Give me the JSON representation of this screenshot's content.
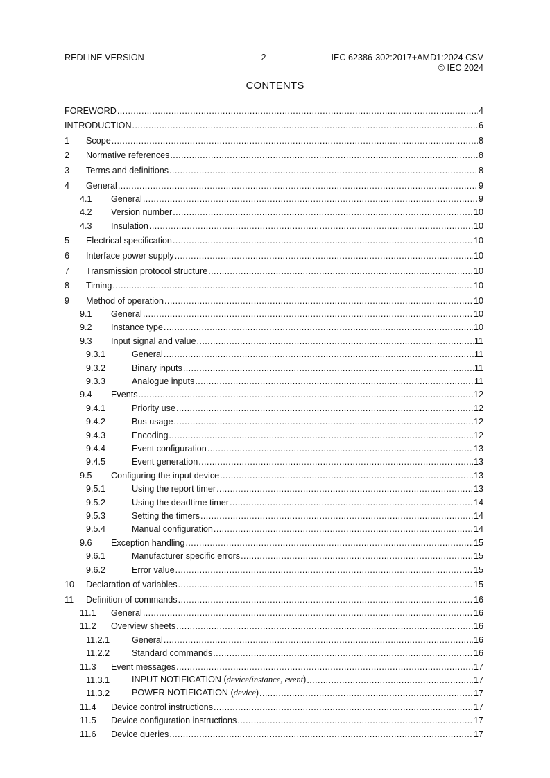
{
  "header": {
    "left": "REDLINE VERSION",
    "center": "– 2 –",
    "right_line1": "IEC 62386-302:2017+AMD1:2024 CSV",
    "right_line2": "© IEC 2024"
  },
  "title": "CONTENTS",
  "toc": [
    {
      "level": 0,
      "num": "",
      "title": "FOREWORD",
      "page": "4"
    },
    {
      "level": 0,
      "num": "",
      "title": "INTRODUCTION",
      "page": "6"
    },
    {
      "level": 1,
      "num": "1",
      "title": "Scope",
      "page": "8"
    },
    {
      "level": 1,
      "num": "2",
      "title": "Normative references",
      "page": "8"
    },
    {
      "level": 1,
      "num": "3",
      "title": "Terms and definitions",
      "page": "8"
    },
    {
      "level": 1,
      "num": "4",
      "title": "General",
      "page": "9"
    },
    {
      "level": 2,
      "num": "4.1",
      "title": "General",
      "page": "9"
    },
    {
      "level": 2,
      "num": "4.2",
      "title": "Version number",
      "page": "10"
    },
    {
      "level": 2,
      "num": "4.3",
      "title": "Insulation",
      "page": "10"
    },
    {
      "level": 1,
      "num": "5",
      "title": "Electrical specification",
      "page": "10"
    },
    {
      "level": 1,
      "num": "6",
      "title": "Interface power supply",
      "page": "10"
    },
    {
      "level": 1,
      "num": "7",
      "title": "Transmission protocol structure",
      "page": "10"
    },
    {
      "level": 1,
      "num": "8",
      "title": "Timing",
      "page": "10"
    },
    {
      "level": 1,
      "num": "9",
      "title": "Method of operation",
      "page": "10"
    },
    {
      "level": 2,
      "num": "9.1",
      "title": "General",
      "page": "10"
    },
    {
      "level": 2,
      "num": "9.2",
      "title": "Instance type",
      "page": "10"
    },
    {
      "level": 2,
      "num": "9.3",
      "title": "Input signal and value",
      "page": "11"
    },
    {
      "level": 3,
      "num": "9.3.1",
      "title": "General",
      "page": "11"
    },
    {
      "level": 3,
      "num": "9.3.2",
      "title": "Binary inputs",
      "page": "11"
    },
    {
      "level": 3,
      "num": "9.3.3",
      "title": "Analogue inputs",
      "page": "11"
    },
    {
      "level": 2,
      "num": "9.4",
      "title": "Events",
      "page": "12"
    },
    {
      "level": 3,
      "num": "9.4.1",
      "title": "Priority use",
      "page": "12"
    },
    {
      "level": 3,
      "num": "9.4.2",
      "title": "Bus usage",
      "page": "12"
    },
    {
      "level": 3,
      "num": "9.4.3",
      "title": "Encoding",
      "page": "12"
    },
    {
      "level": 3,
      "num": "9.4.4",
      "title": "Event configuration",
      "page": "13"
    },
    {
      "level": 3,
      "num": "9.4.5",
      "title": "Event generation",
      "page": "13"
    },
    {
      "level": 2,
      "num": "9.5",
      "title": "Configuring the input device",
      "page": "13"
    },
    {
      "level": 3,
      "num": "9.5.1",
      "title": "Using the report timer",
      "page": "13"
    },
    {
      "level": 3,
      "num": "9.5.2",
      "title": "Using the deadtime timer",
      "page": "14"
    },
    {
      "level": 3,
      "num": "9.5.3",
      "title": "Setting the timers",
      "page": "14"
    },
    {
      "level": 3,
      "num": "9.5.4",
      "title": "Manual configuration",
      "page": "14"
    },
    {
      "level": 2,
      "num": "9.6",
      "title": "Exception handling",
      "page": "15"
    },
    {
      "level": 3,
      "num": "9.6.1",
      "title": "Manufacturer specific errors",
      "page": "15"
    },
    {
      "level": 3,
      "num": "9.6.2",
      "title": "Error value",
      "page": "15"
    },
    {
      "level": 1,
      "num": "10",
      "title": "Declaration of variables",
      "page": "15"
    },
    {
      "level": 1,
      "num": "11",
      "title": "Definition of commands",
      "page": "16"
    },
    {
      "level": 2,
      "num": "11.1",
      "title": "General",
      "page": "16"
    },
    {
      "level": 2,
      "num": "11.2",
      "title": "Overview sheets",
      "page": "16"
    },
    {
      "level": 3,
      "num": "11.2.1",
      "title": "General",
      "page": "16"
    },
    {
      "level": 3,
      "num": "11.2.2",
      "title": "Standard commands",
      "page": "16"
    },
    {
      "level": 2,
      "num": "11.3",
      "title": "Event messages",
      "page": "17"
    },
    {
      "level": 3,
      "num": "11.3.1",
      "title": "INPUT NOTIFICATION (",
      "args": "device/instance, event",
      "tail": ")",
      "page": "17"
    },
    {
      "level": 3,
      "num": "11.3.2",
      "title": "POWER NOTIFICATION (",
      "args": "device",
      "tail": ")",
      "page": "17"
    },
    {
      "level": 2,
      "num": "11.4",
      "title": "Device control instructions",
      "page": "17"
    },
    {
      "level": 2,
      "num": "11.5",
      "title": "Device configuration instructions",
      "page": "17"
    },
    {
      "level": 2,
      "num": "11.6",
      "title": "Device queries",
      "page": "17"
    }
  ]
}
